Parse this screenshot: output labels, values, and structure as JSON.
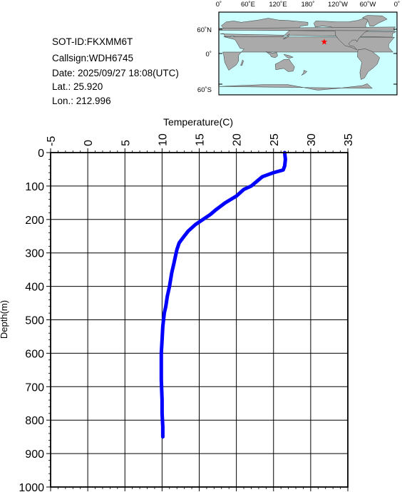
{
  "info": {
    "sot_id": "SOT-ID:FKXMM6T",
    "callsign": "Callsign:WDH6745",
    "date": "Date:  2025/09/27 18:08(UTC)",
    "lat": "Lat.:  25.920",
    "lon": "Lon.:  212.996"
  },
  "map": {
    "lon_labels": [
      "0˚",
      "60˚E",
      "120˚E",
      "180˚",
      "120˚W",
      "60˚W",
      "0˚"
    ],
    "lat_labels": [
      "60˚N",
      "0˚",
      "60˚S"
    ],
    "marker": {
      "lat": 25.92,
      "lon": 212.996,
      "color": "#ff0000"
    },
    "ocean_color": "#ccffff",
    "land_color": "#aaaaaa"
  },
  "chart_data": {
    "type": "line",
    "xlabel": "Temperature(C)",
    "ylabel": "Depth(m)",
    "xlim": [
      -5,
      35
    ],
    "ylim": [
      0,
      1000
    ],
    "y_inverted": true,
    "x_ticks": [
      -5,
      0,
      5,
      10,
      15,
      20,
      25,
      30,
      35
    ],
    "y_ticks": [
      0,
      100,
      200,
      300,
      400,
      500,
      600,
      700,
      800,
      900,
      1000
    ],
    "grid": true,
    "line_color": "#0000ff",
    "series": [
      {
        "x": [
          26.5,
          26.6,
          26.5,
          26.3,
          25.0,
          23.5,
          22.8,
          22.0,
          21.0,
          20.0,
          18.5,
          17.3,
          16.5,
          15.5,
          14.5,
          13.5,
          12.8,
          12.3,
          12.0,
          11.8,
          11.6,
          11.3,
          11.0,
          10.7,
          10.5,
          10.3,
          10.1,
          10.0,
          9.9,
          9.9,
          10.0,
          10.0,
          10.1,
          10.1
        ],
        "y": [
          0,
          20,
          40,
          52,
          60,
          72,
          85,
          100,
          110,
          130,
          150,
          170,
          185,
          200,
          215,
          235,
          255,
          270,
          290,
          310,
          330,
          360,
          400,
          430,
          460,
          480,
          520,
          560,
          600,
          680,
          740,
          780,
          820,
          850
        ]
      }
    ]
  }
}
